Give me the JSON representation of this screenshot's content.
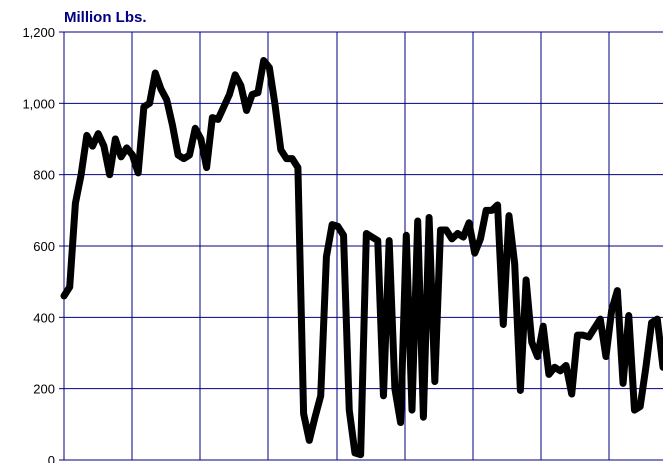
{
  "chart_data": {
    "type": "line",
    "ylabel": "Million Lbs.",
    "ylim": [
      0,
      1200
    ],
    "yticks": [
      0,
      200,
      400,
      600,
      800,
      1000,
      1200
    ],
    "ytick_labels": [
      "0",
      "200",
      "400",
      "600",
      "800",
      "1,000",
      "1,200"
    ],
    "grid": true,
    "colors": {
      "line": "#000000",
      "grid": "#00007f",
      "title": "#00007f"
    },
    "series": [
      {
        "values": [
          460,
          485,
          720,
          800,
          910,
          880,
          915,
          880,
          800,
          900,
          850,
          875,
          855,
          805,
          990,
          1000,
          1085,
          1040,
          1010,
          940,
          855,
          845,
          855,
          930,
          900,
          820,
          960,
          955,
          990,
          1025,
          1080,
          1050,
          980,
          1025,
          1030,
          1120,
          1100,
          995,
          870,
          845,
          845,
          820,
          130,
          55,
          120,
          180,
          570,
          660,
          655,
          630,
          140,
          20,
          15,
          635,
          625,
          615,
          180,
          615,
          200,
          105,
          630,
          140,
          670,
          120,
          680,
          220,
          645,
          645,
          620,
          635,
          625,
          665,
          580,
          620,
          700,
          700,
          715,
          380,
          685,
          550,
          195,
          505,
          330,
          290,
          375,
          240,
          260,
          250,
          265,
          185,
          350,
          350,
          345,
          370,
          395,
          290,
          420,
          475,
          215,
          405,
          140,
          150,
          260,
          385,
          395,
          260
        ]
      }
    ]
  }
}
